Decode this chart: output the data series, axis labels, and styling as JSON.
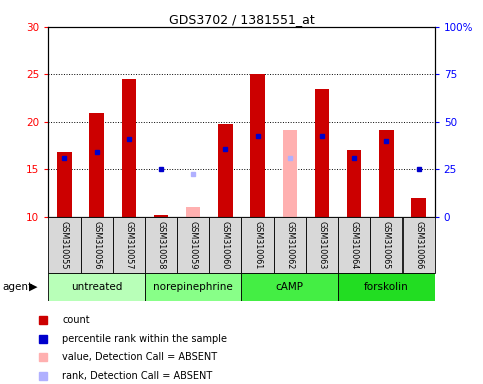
{
  "title": "GDS3702 / 1381551_at",
  "samples": [
    "GSM310055",
    "GSM310056",
    "GSM310057",
    "GSM310058",
    "GSM310059",
    "GSM310060",
    "GSM310061",
    "GSM310062",
    "GSM310063",
    "GSM310064",
    "GSM310065",
    "GSM310066"
  ],
  "groups": [
    {
      "label": "untreated",
      "indices": [
        0,
        1,
        2
      ]
    },
    {
      "label": "norepinephrine",
      "indices": [
        3,
        4,
        5
      ]
    },
    {
      "label": "cAMP",
      "indices": [
        6,
        7,
        8
      ]
    },
    {
      "label": "forskolin",
      "indices": [
        9,
        10,
        11
      ]
    }
  ],
  "group_colors": [
    "#b8ffb8",
    "#88ff88",
    "#44ee44",
    "#22dd22"
  ],
  "count_values": [
    16.8,
    20.9,
    24.5,
    10.2,
    null,
    19.8,
    25.0,
    null,
    23.5,
    17.0,
    19.2,
    12.0
  ],
  "count_absent_values": [
    null,
    null,
    null,
    null,
    11.0,
    null,
    null,
    19.2,
    null,
    null,
    null,
    null
  ],
  "percentile_values": [
    16.2,
    16.8,
    18.2,
    15.0,
    null,
    17.2,
    18.5,
    null,
    18.5,
    16.2,
    18.0,
    15.0
  ],
  "percentile_absent_values": [
    null,
    null,
    null,
    null,
    14.5,
    null,
    null,
    16.2,
    null,
    null,
    null,
    null
  ],
  "ylim": [
    10,
    30
  ],
  "y2lim": [
    0,
    100
  ],
  "yticks": [
    10,
    15,
    20,
    25,
    30
  ],
  "y2ticks": [
    0,
    25,
    50,
    75,
    100
  ],
  "y2ticklabels": [
    "0",
    "25",
    "50",
    "75",
    "100%"
  ],
  "bar_color": "#cc0000",
  "bar_absent_color": "#ffb0b0",
  "dot_color": "#0000cc",
  "dot_absent_color": "#b0b0ff",
  "bar_width": 0.45,
  "grid_lines": [
    15,
    20,
    25
  ],
  "legend_items": [
    {
      "color": "#cc0000",
      "label": "count"
    },
    {
      "color": "#0000cc",
      "label": "percentile rank within the sample"
    },
    {
      "color": "#ffb0b0",
      "label": "value, Detection Call = ABSENT"
    },
    {
      "color": "#b0b0ff",
      "label": "rank, Detection Call = ABSENT"
    }
  ],
  "fig_width": 4.83,
  "fig_height": 3.84,
  "dpi": 100
}
